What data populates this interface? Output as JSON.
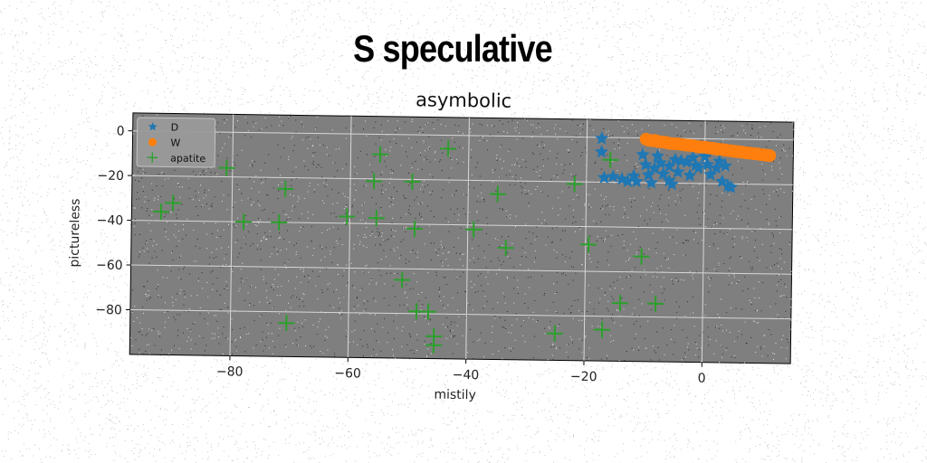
{
  "figure": {
    "suptitle": "S speculative"
  },
  "chart_data": {
    "type": "scatter",
    "title": "asymbolic",
    "xlabel": "mistily",
    "ylabel": "pictureless",
    "xlim": [
      -97,
      15
    ],
    "ylim": [
      -100,
      8
    ],
    "xticks": [
      -80,
      -60,
      -40,
      -20,
      0
    ],
    "yticks": [
      0,
      -20,
      -40,
      -60,
      -80
    ],
    "xtick_labels": [
      "−80",
      "−60",
      "−40",
      "−20",
      "0"
    ],
    "ytick_labels": [
      "0",
      "−20",
      "−40",
      "−60",
      "−80"
    ],
    "grid": true,
    "legend_position": "top-left",
    "axes_background": "#7f7f7f",
    "series": [
      {
        "name": "D",
        "marker": "star",
        "color": "#1f77b4",
        "points": [
          [
            -17.5,
            -0.5
          ],
          [
            -17.5,
            -6.5
          ],
          [
            -17,
            -18
          ],
          [
            -15.5,
            -17.5
          ],
          [
            -14,
            -18.5
          ],
          [
            -13,
            -19.5
          ],
          [
            -12,
            -17
          ],
          [
            -11.5,
            -19.5
          ],
          [
            -10.5,
            -7.5
          ],
          [
            -10,
            -12
          ],
          [
            -9.5,
            -16.5
          ],
          [
            -9,
            -20
          ],
          [
            -8.5,
            -13.5
          ],
          [
            -8,
            -8
          ],
          [
            -7.5,
            -11
          ],
          [
            -7,
            -16
          ],
          [
            -6,
            -12.5
          ],
          [
            -6,
            -19
          ],
          [
            -5.5,
            -20.5
          ],
          [
            -5,
            -9.5
          ],
          [
            -4.5,
            -15
          ],
          [
            -4,
            -10
          ],
          [
            -3,
            -10.5
          ],
          [
            -2.5,
            -16.5
          ],
          [
            -2,
            -8.5
          ],
          [
            -1.5,
            -12
          ],
          [
            -1,
            -13
          ],
          [
            0,
            -8
          ],
          [
            0.5,
            -11.5
          ],
          [
            1,
            -16
          ],
          [
            2,
            -13
          ],
          [
            2.5,
            -10
          ],
          [
            3,
            -19
          ],
          [
            3.5,
            -12
          ],
          [
            4,
            -21
          ],
          [
            4.5,
            -21.5
          ]
        ]
      },
      {
        "name": "W",
        "marker": "circle",
        "color": "#ff7f0e",
        "points": [
          [
            -10,
            -0.5
          ],
          [
            -9.5,
            -1
          ],
          [
            -9,
            -1.2
          ],
          [
            -8.5,
            -1
          ],
          [
            -8,
            -1.5
          ],
          [
            -7.5,
            -1.6
          ],
          [
            -7,
            -1.7
          ],
          [
            -6.5,
            -1.9
          ],
          [
            -6,
            -2.3
          ],
          [
            -5.5,
            -2.3
          ],
          [
            -5,
            -2.4
          ],
          [
            -4.5,
            -2.5
          ],
          [
            -4,
            -2.6
          ],
          [
            -3.5,
            -2.8
          ],
          [
            -3,
            -3
          ],
          [
            -2.5,
            -3
          ],
          [
            -2,
            -3.2
          ],
          [
            -1.5,
            -3.4
          ],
          [
            -1,
            -3.6
          ],
          [
            -0.5,
            -3.7
          ],
          [
            0,
            -3.8
          ],
          [
            0.5,
            -4
          ],
          [
            1,
            -4.1
          ],
          [
            1.5,
            -4.3
          ],
          [
            2,
            -4.5
          ],
          [
            2.5,
            -4.6
          ],
          [
            3,
            -4.7
          ],
          [
            3.5,
            -4.9
          ],
          [
            4,
            -5.1
          ],
          [
            4.5,
            -5.2
          ],
          [
            5,
            -5.4
          ],
          [
            5.5,
            -5.5
          ],
          [
            6,
            -5.7
          ],
          [
            6.5,
            -5.8
          ],
          [
            7,
            -6
          ],
          [
            7.5,
            -6.1
          ],
          [
            8,
            -6.2
          ],
          [
            8.5,
            -6.4
          ],
          [
            9,
            -6.5
          ],
          [
            9.5,
            -6.7
          ],
          [
            10,
            -6.8
          ],
          [
            10.5,
            -7
          ],
          [
            11,
            -7.1
          ]
        ]
      },
      {
        "name": "apatite",
        "marker": "plus",
        "color": "#2ca02c",
        "points": [
          [
            -92,
            -36
          ],
          [
            -90,
            -32
          ],
          [
            -81,
            -16
          ],
          [
            -78,
            -40
          ],
          [
            -72,
            -40
          ],
          [
            -71,
            -25
          ],
          [
            -70.5,
            -85
          ],
          [
            -60.5,
            -37
          ],
          [
            -56,
            -21
          ],
          [
            -55.5,
            -37.5
          ],
          [
            -55,
            -9
          ],
          [
            -51,
            -65
          ],
          [
            -49.5,
            -21
          ],
          [
            -49,
            -42
          ],
          [
            -48.5,
            -79
          ],
          [
            -46.5,
            -79
          ],
          [
            -45.5,
            -90
          ],
          [
            -45.5,
            -94
          ],
          [
            -43.5,
            -6
          ],
          [
            -39,
            -42
          ],
          [
            -35,
            -26
          ],
          [
            -33.5,
            -50
          ],
          [
            -25,
            -88
          ],
          [
            -22,
            -21
          ],
          [
            -19.5,
            -48
          ],
          [
            -17,
            -86
          ],
          [
            -16,
            -10
          ],
          [
            -14,
            -74
          ],
          [
            -10.5,
            -53
          ],
          [
            -8,
            -74
          ]
        ]
      }
    ]
  }
}
